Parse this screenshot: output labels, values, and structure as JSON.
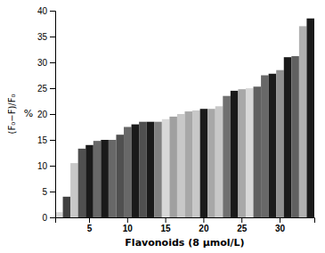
{
  "chart_data": {
    "type": "bar",
    "xlabel": "Flavonoids (8 μmol/L)",
    "ylabel": "%",
    "annotations": [
      {
        "text": "(F₀−F)/F₀"
      }
    ],
    "categories": [
      null,
      null,
      null,
      null,
      "5",
      null,
      null,
      null,
      null,
      "10",
      null,
      null,
      null,
      null,
      "15",
      null,
      null,
      null,
      null,
      "20",
      null,
      null,
      null,
      null,
      "25",
      null,
      null,
      null,
      null,
      "30",
      null,
      null,
      null,
      null
    ],
    "values": [
      1.0,
      4.0,
      10.5,
      13.3,
      14.0,
      14.8,
      15.0,
      15.0,
      16.0,
      17.5,
      18.0,
      18.5,
      18.5,
      18.5,
      19.0,
      19.5,
      20.0,
      20.5,
      20.7,
      21.0,
      21.0,
      21.5,
      23.5,
      24.5,
      24.8,
      25.0,
      25.3,
      27.5,
      27.8,
      28.5,
      31.0,
      31.2,
      37.0,
      38.5
    ],
    "colors": [
      "#d8d8d8",
      "#404040",
      "#c8c8c8",
      "#505050",
      "#1a1a1a",
      "#686868",
      "#1a1a1a",
      "#686868",
      "#505050",
      "#686868",
      "#1a1a1a",
      "#505050",
      "#1a1a1a",
      "#808080",
      "#d8d8d8",
      "#a0a0a0",
      "#c8c8c8",
      "#a8a8a8",
      "#c8c8c8",
      "#1a1a1a",
      "#a8a8a8",
      "#c8c8c8",
      "#707070",
      "#1a1a1a",
      "#a8a8a8",
      "#d8d8d8",
      "#606060",
      "#686868",
      "#1a1a1a",
      "#909090",
      "#1a1a1a",
      "#606060",
      "#b0b0b0",
      "#1a1a1a"
    ],
    "ylim": [
      0,
      40
    ],
    "yticks": [
      0,
      5,
      10,
      15,
      20,
      25,
      30,
      35,
      40
    ],
    "grid": false
  }
}
